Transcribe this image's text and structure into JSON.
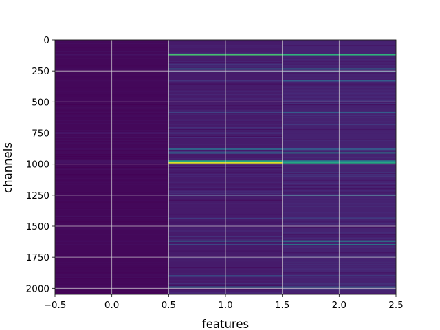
{
  "chart_data": {
    "type": "heatmap",
    "colormap": "viridis",
    "title": "",
    "xlabel": "features",
    "ylabel": "channels",
    "xlim": [
      -0.5,
      2.5
    ],
    "ylim": [
      2048,
      0
    ],
    "y_inverted": true,
    "grid": true,
    "n_columns": 3,
    "n_rows": 2048,
    "x_ticks": [
      -0.5,
      0.0,
      0.5,
      1.0,
      1.5,
      2.0,
      2.5
    ],
    "x_tick_labels": [
      "−0.5",
      "0.0",
      "0.5",
      "1.0",
      "1.5",
      "2.0",
      "2.5"
    ],
    "y_ticks": [
      0,
      250,
      500,
      750,
      1000,
      1250,
      1500,
      1750,
      2000
    ],
    "y_tick_labels": [
      "0",
      "250",
      "500",
      "750",
      "1000",
      "1250",
      "1500",
      "1750",
      "2000"
    ],
    "value_range": [
      0,
      1
    ],
    "column_base_levels": [
      0.02,
      0.08,
      0.1
    ],
    "highlighted_rows": [
      {
        "row": 120,
        "values": [
          0.05,
          0.7,
          0.65
        ]
      },
      {
        "row": 235,
        "values": [
          0.04,
          0.35,
          0.4
        ]
      },
      {
        "row": 255,
        "values": [
          0.03,
          0.2,
          0.3
        ]
      },
      {
        "row": 330,
        "values": [
          0.03,
          0.15,
          0.3
        ]
      },
      {
        "row": 585,
        "values": [
          0.03,
          0.2,
          0.3
        ]
      },
      {
        "row": 750,
        "values": [
          0.1,
          0.15,
          0.1
        ]
      },
      {
        "row": 880,
        "values": [
          0.04,
          0.35,
          0.3
        ]
      },
      {
        "row": 910,
        "values": [
          0.04,
          0.4,
          0.45
        ]
      },
      {
        "row": 975,
        "values": [
          0.05,
          0.6,
          0.45
        ]
      },
      {
        "row": 990,
        "values": [
          0.05,
          0.95,
          0.6
        ]
      },
      {
        "row": 1250,
        "values": [
          0.03,
          0.2,
          0.35
        ]
      },
      {
        "row": 1440,
        "values": [
          0.03,
          0.2,
          0.2
        ]
      },
      {
        "row": 1620,
        "values": [
          0.04,
          0.35,
          0.5
        ]
      },
      {
        "row": 1650,
        "values": [
          0.04,
          0.25,
          0.45
        ]
      },
      {
        "row": 1900,
        "values": [
          0.03,
          0.3,
          0.2
        ]
      },
      {
        "row": 1990,
        "values": [
          0.04,
          0.4,
          0.35
        ]
      }
    ]
  }
}
